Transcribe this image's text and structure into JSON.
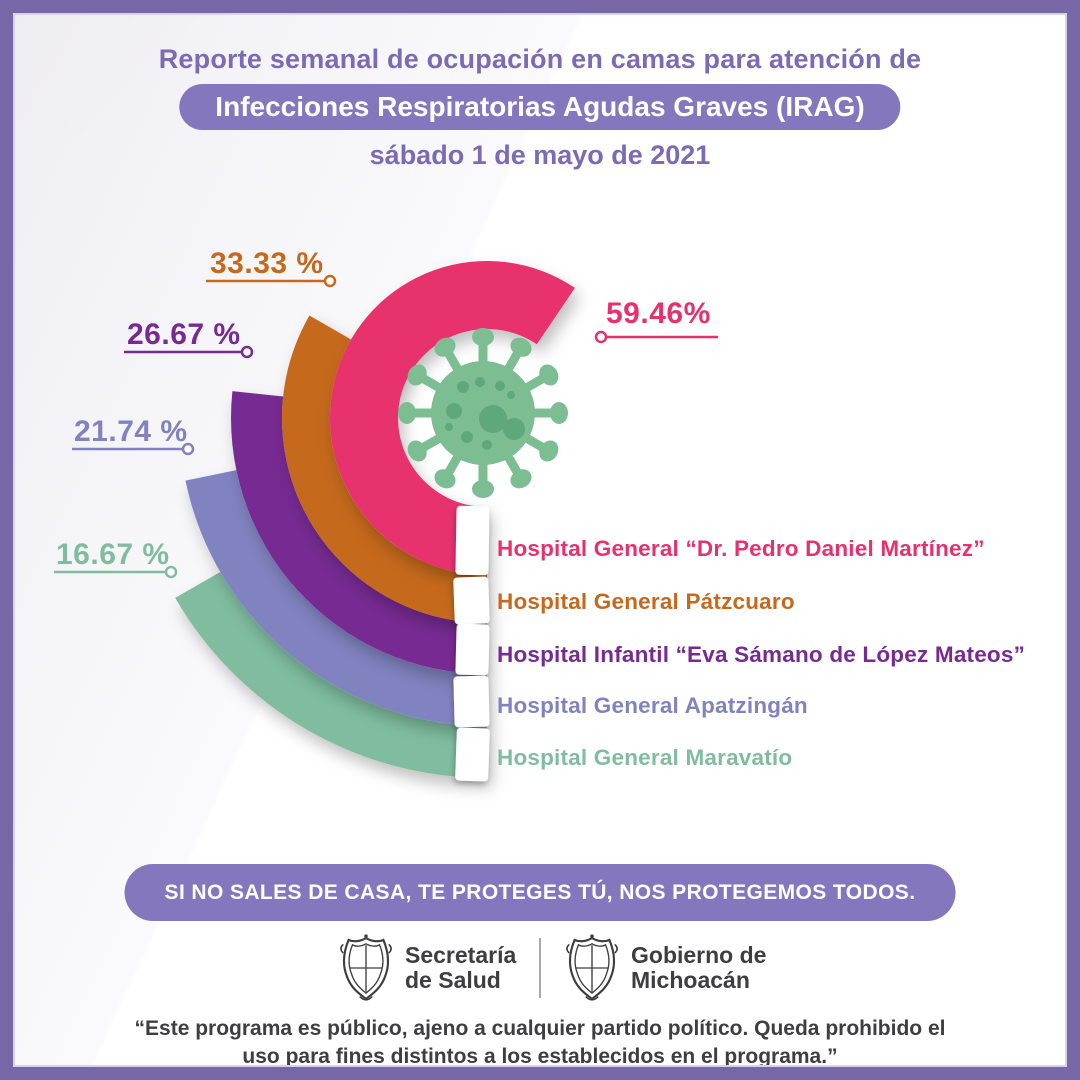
{
  "header": {
    "line1": "Reporte semanal de ocupación en camas para atención de",
    "pill": "Infecciones Respiratorias Agudas Graves (IRAG)",
    "date": "sábado 1 de mayo de 2021"
  },
  "chart_data": {
    "type": "radial-bar",
    "unit": "%",
    "full_circle_percent": 100,
    "center_icon": "coronavirus-icon",
    "series": [
      {
        "label": "Hospital General “Dr. Pedro Daniel Martínez”",
        "value": 59.46,
        "display": "59.46%",
        "color": "#E7316E"
      },
      {
        "label": "Hospital General Pátzcuaro",
        "value": 33.33,
        "display": "33.33 %",
        "color": "#C5691E"
      },
      {
        "label": "Hospital Infantil “Eva Sámano de López Mateos”",
        "value": 26.67,
        "display": "26.67 %",
        "color": "#772B92"
      },
      {
        "label": "Hospital General Apatzingán",
        "value": 21.74,
        "display": "21.74 %",
        "color": "#8183C1"
      },
      {
        "label": "Hospital General Maravatío",
        "value": 16.67,
        "display": "16.67 %",
        "color": "#80BDA0"
      }
    ]
  },
  "banner": {
    "text": "SI NO SALES DE CASA, TE PROTEGES TÚ, NOS PROTEGEMOS TODOS."
  },
  "logos": {
    "left": {
      "line1": "Secretaría",
      "line2": "de Salud"
    },
    "right": {
      "line1": "Gobierno de",
      "line2": "Michoacán"
    }
  },
  "footer": {
    "line1": "“Este programa es público, ajeno a cualquier partido político. Queda prohibido el",
    "line2": "uso para fines distintos a los establecidos en el programa.”"
  },
  "theme": {
    "frame_purple": "#7867A7",
    "text_purple": "#7C6BB4",
    "pill_purple": "#8477BE",
    "dark_text": "#3E3E40",
    "virus_green": "#7DBD92",
    "virus_spot_green": "#5FA87B"
  }
}
